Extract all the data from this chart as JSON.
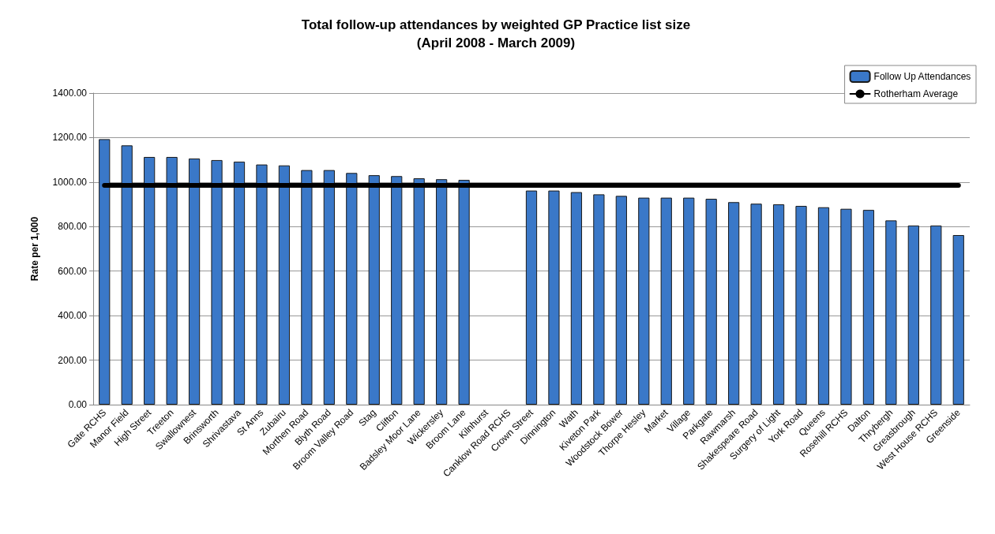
{
  "chart_data": {
    "type": "bar",
    "title": "Total follow-up attendances by weighted GP Practice list size",
    "subtitle": "(April 2008 - March 2009)",
    "ylabel": "Rate per 1,000",
    "categories": [
      "Gate RCHS",
      "Manor Field",
      "High Street",
      "Treeton",
      "Swallownest",
      "Brinsworth",
      "Shrivastava",
      "St Anns",
      "Zubairu",
      "Morthen Road",
      "Blyth Road",
      "Broom Valley Road",
      "Stag",
      "Clifton",
      "Badsley Moor Lane",
      "Wickersley",
      "Broom Lane",
      "Kilnhurst",
      "Canklow Road RCHS",
      "Crown Street",
      "Dinnington",
      "Wath",
      "Kiveton Park",
      "Woodstock Bower",
      "Thorpe Hesley",
      "Market",
      "Village",
      "Parkgate",
      "Rawmarsh",
      "Shakespeare Road",
      "Surgery of Light",
      "York Road",
      "Queens",
      "Rosehill RCHS",
      "Dalton",
      "Thrybergh",
      "Greasbrough",
      "West House RCHS",
      "Greenside"
    ],
    "series": [
      {
        "name": "Follow Up Attendances",
        "color": "#3a78c8",
        "values": [
          1193,
          1165,
          1113,
          1113,
          1106,
          1099,
          1092,
          1079,
          1075,
          1054,
          1054,
          1041,
          1031,
          1027,
          1017,
          1013,
          1010,
          null,
          null,
          962,
          962,
          955,
          945,
          938,
          930,
          930,
          930,
          925,
          910,
          903,
          900,
          893,
          887,
          880,
          875,
          828,
          805,
          805,
          762
        ]
      },
      {
        "name": "Rotherham Average",
        "type": "line",
        "color": "#000000",
        "values": [
          985,
          985,
          985,
          985,
          985,
          985,
          985,
          985,
          985,
          985,
          985,
          985,
          985,
          985,
          985,
          985,
          985,
          985,
          985,
          985,
          985,
          985,
          985,
          985,
          985,
          985,
          985,
          985,
          985,
          985,
          985,
          985,
          985,
          985,
          985,
          985,
          985,
          985,
          985
        ]
      }
    ],
    "ylim": [
      0,
      1400
    ],
    "yticks": [
      {
        "value": 0,
        "label": "0.00"
      },
      {
        "value": 200,
        "label": "200.00"
      },
      {
        "value": 400,
        "label": "400.00"
      },
      {
        "value": 600,
        "label": "600.00"
      },
      {
        "value": 800,
        "label": "800.00"
      },
      {
        "value": 1000,
        "label": "1000.00"
      },
      {
        "value": 1200,
        "label": "1200.00"
      },
      {
        "value": 1400,
        "label": "1400.00"
      }
    ],
    "grid": "y",
    "legend": "top right",
    "marker": "none",
    "line_style": "solid"
  }
}
